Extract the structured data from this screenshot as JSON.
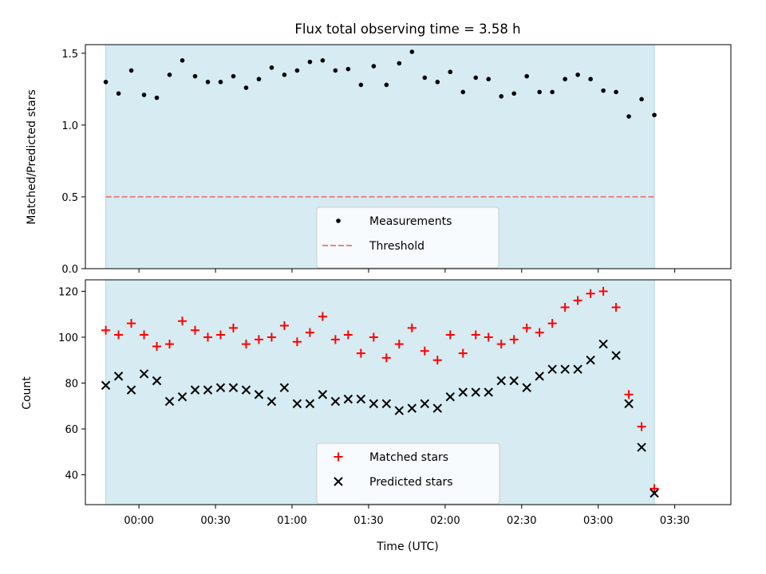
{
  "chart_data": [
    {
      "type": "scatter",
      "title": "Flux total observing time = 3.58 h",
      "ylabel": "Matched/Predicted stars",
      "xlabel": "",
      "ylim": [
        0,
        1.56
      ],
      "xlim": [
        -21,
        232
      ],
      "yticks": [
        0.0,
        0.5,
        1.0,
        1.5
      ],
      "ytick_labels": [
        "0.0",
        "0.5",
        "1.0",
        "1.5"
      ],
      "shaded_span": [
        -13,
        202
      ],
      "legend_position": "lower center",
      "series": [
        {
          "name": "Measurements",
          "marker": "dot",
          "color": "#000000",
          "x": [
            -13,
            -8,
            -3,
            2,
            7,
            12,
            17,
            22,
            27,
            32,
            37,
            42,
            47,
            52,
            57,
            62,
            67,
            72,
            77,
            82,
            87,
            92,
            97,
            102,
            107,
            112,
            117,
            122,
            127,
            132,
            137,
            142,
            147,
            152,
            157,
            162,
            167,
            172,
            177,
            182,
            187,
            192,
            197,
            202
          ],
          "y": [
            1.3,
            1.22,
            1.38,
            1.21,
            1.19,
            1.35,
            1.45,
            1.34,
            1.3,
            1.3,
            1.34,
            1.26,
            1.32,
            1.4,
            1.35,
            1.38,
            1.44,
            1.45,
            1.38,
            1.39,
            1.28,
            1.41,
            1.28,
            1.43,
            1.51,
            1.33,
            1.3,
            1.37,
            1.23,
            1.33,
            1.32,
            1.2,
            1.22,
            1.34,
            1.23,
            1.23,
            1.32,
            1.35,
            1.32,
            1.24,
            1.23,
            1.06,
            1.18,
            1.07
          ]
        },
        {
          "name": "Threshold",
          "marker": "dashed-line",
          "color": "#f08080",
          "x": [
            -13,
            202
          ],
          "y": [
            0.5,
            0.5
          ]
        }
      ]
    },
    {
      "type": "scatter",
      "title": "",
      "ylabel": "Count",
      "xlabel": "Time (UTC)",
      "ylim": [
        27,
        125
      ],
      "xlim": [
        -21,
        232
      ],
      "yticks": [
        40,
        60,
        80,
        100,
        120
      ],
      "ytick_labels": [
        "40",
        "60",
        "80",
        "100",
        "120"
      ],
      "xticks": [
        0,
        30,
        60,
        90,
        120,
        150,
        180,
        210
      ],
      "xtick_labels": [
        "00:00",
        "00:30",
        "01:00",
        "01:30",
        "02:00",
        "02:30",
        "03:00",
        "03:30"
      ],
      "shaded_span": [
        -13,
        202
      ],
      "legend_position": "lower center",
      "series": [
        {
          "name": "Matched stars",
          "marker": "plus",
          "color": "#ff0000",
          "x": [
            -13,
            -8,
            -3,
            2,
            7,
            12,
            17,
            22,
            27,
            32,
            37,
            42,
            47,
            52,
            57,
            62,
            67,
            72,
            77,
            82,
            87,
            92,
            97,
            102,
            107,
            112,
            117,
            122,
            127,
            132,
            137,
            142,
            147,
            152,
            157,
            162,
            167,
            172,
            177,
            182,
            187,
            192,
            197,
            202
          ],
          "y": [
            103,
            101,
            106,
            101,
            96,
            97,
            107,
            103,
            100,
            101,
            104,
            97,
            99,
            100,
            105,
            98,
            102,
            109,
            99,
            101,
            93,
            100,
            91,
            97,
            104,
            94,
            90,
            101,
            93,
            101,
            100,
            97,
            99,
            104,
            102,
            106,
            113,
            116,
            119,
            120,
            113,
            75,
            61,
            34
          ]
        },
        {
          "name": "Predicted stars",
          "marker": "x",
          "color": "#000000",
          "x": [
            -13,
            -8,
            -3,
            2,
            7,
            12,
            17,
            22,
            27,
            32,
            37,
            42,
            47,
            52,
            57,
            62,
            67,
            72,
            77,
            82,
            87,
            92,
            97,
            102,
            107,
            112,
            117,
            122,
            127,
            132,
            137,
            142,
            147,
            152,
            157,
            162,
            167,
            172,
            177,
            182,
            187,
            192,
            197,
            202
          ],
          "y": [
            79,
            83,
            77,
            84,
            81,
            72,
            74,
            77,
            77,
            78,
            78,
            77,
            75,
            72,
            78,
            71,
            71,
            75,
            72,
            73,
            73,
            71,
            71,
            68,
            69,
            71,
            69,
            74,
            76,
            76,
            76,
            81,
            81,
            78,
            83,
            86,
            86,
            86,
            90,
            97,
            92,
            71,
            52,
            32
          ]
        }
      ]
    }
  ]
}
